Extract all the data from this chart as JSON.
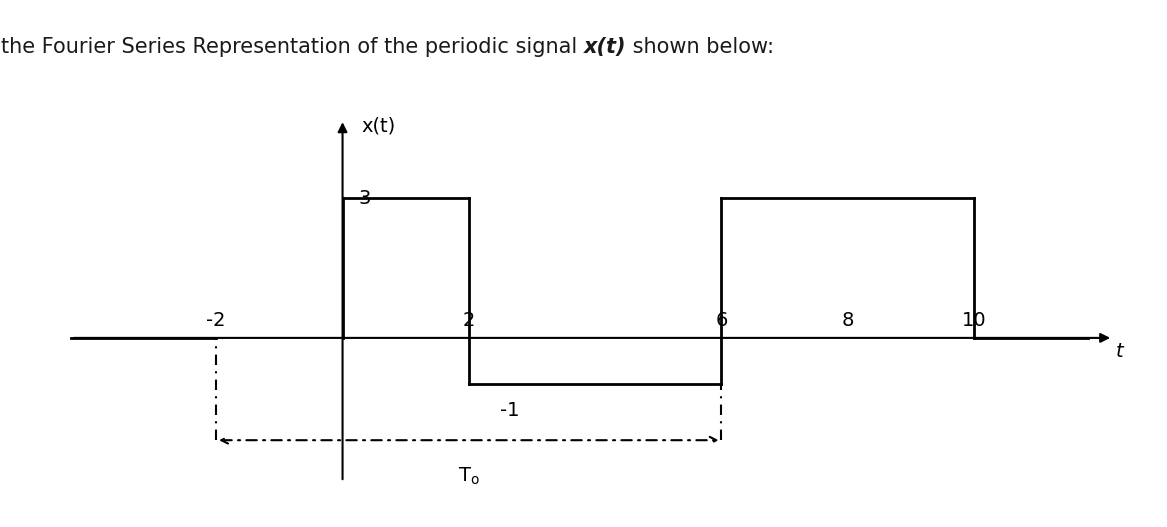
{
  "background_color": "#ffffff",
  "axis_color": "#000000",
  "signal_color": "#000000",
  "ylabel": "x(t)",
  "xlabel": "t",
  "title_prefix": "Calculate the Fourier Series Representation of the periodic signal ",
  "title_bold": "x(t)",
  "title_suffix": " shown below:",
  "xlim": [
    -4.5,
    12.5
  ],
  "ylim": [
    -3.5,
    5.0
  ],
  "fontsize_title": 15,
  "fontsize_labels": 14,
  "fontsize_ticks": 14
}
